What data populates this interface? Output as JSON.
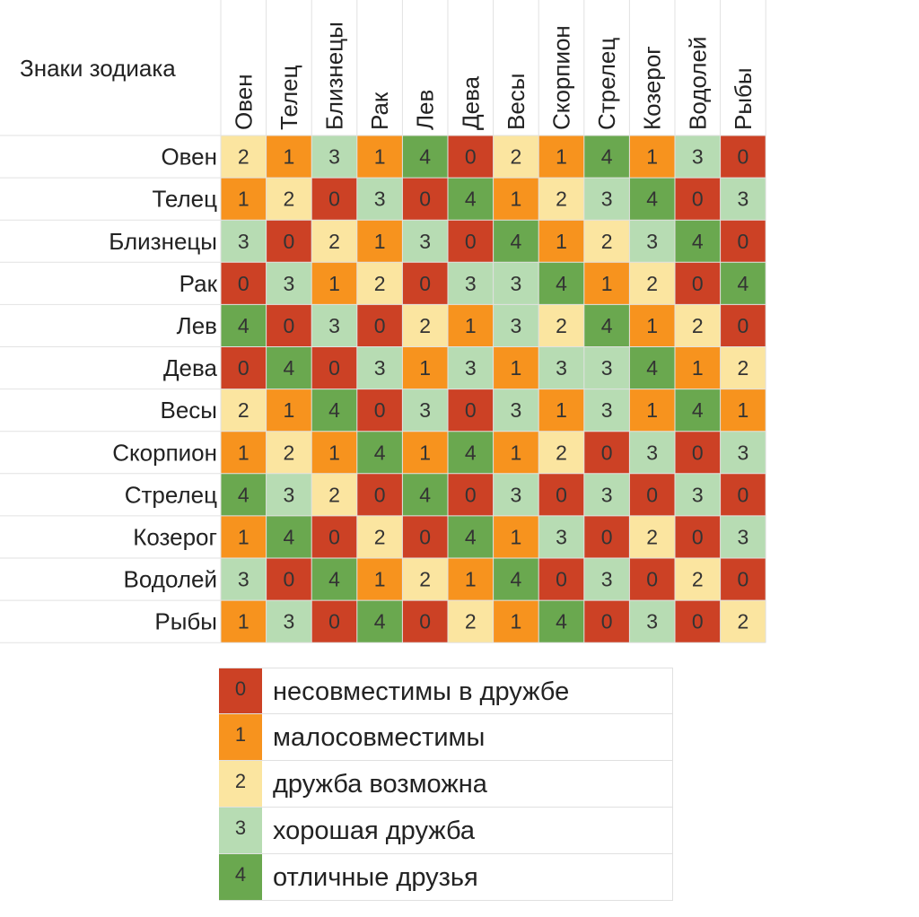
{
  "chart_data": {
    "type": "heatmap",
    "title": "Знаки зодиака",
    "columns": [
      "Овен",
      "Телец",
      "Близнецы",
      "Рак",
      "Лев",
      "Дева",
      "Весы",
      "Скорпион",
      "Стрелец",
      "Козерог",
      "Водолей",
      "Рыбы"
    ],
    "rows": [
      "Овен",
      "Телец",
      "Близнецы",
      "Рак",
      "Лев",
      "Дева",
      "Весы",
      "Скорпион",
      "Стрелец",
      "Козерог",
      "Водолей",
      "Рыбы"
    ],
    "values": [
      [
        2,
        1,
        3,
        1,
        4,
        0,
        2,
        1,
        4,
        1,
        3,
        0
      ],
      [
        1,
        2,
        0,
        3,
        0,
        4,
        1,
        2,
        3,
        4,
        0,
        3
      ],
      [
        3,
        0,
        2,
        1,
        3,
        0,
        4,
        1,
        2,
        3,
        4,
        0
      ],
      [
        0,
        3,
        1,
        2,
        0,
        3,
        3,
        4,
        1,
        2,
        0,
        4
      ],
      [
        4,
        0,
        3,
        0,
        2,
        1,
        3,
        2,
        4,
        1,
        2,
        0
      ],
      [
        0,
        4,
        0,
        3,
        1,
        3,
        1,
        3,
        3,
        4,
        1,
        2
      ],
      [
        2,
        1,
        4,
        0,
        3,
        0,
        3,
        1,
        3,
        1,
        4,
        1
      ],
      [
        1,
        2,
        1,
        4,
        1,
        4,
        1,
        2,
        0,
        3,
        0,
        3
      ],
      [
        4,
        3,
        2,
        0,
        4,
        0,
        3,
        0,
        3,
        0,
        3,
        0
      ],
      [
        1,
        4,
        0,
        2,
        0,
        4,
        1,
        3,
        0,
        2,
        0,
        3
      ],
      [
        3,
        0,
        4,
        1,
        2,
        1,
        4,
        0,
        3,
        0,
        2,
        0
      ],
      [
        1,
        3,
        0,
        4,
        0,
        2,
        1,
        4,
        0,
        3,
        0,
        2
      ]
    ],
    "colors": {
      "0": "#cc4125",
      "1": "#f7931e",
      "2": "#fbe5a0",
      "3": "#b7dcb3",
      "4": "#6aa84f"
    },
    "grid": true
  },
  "legend": {
    "items": [
      {
        "value": "0",
        "label": "несовместимы в дружбе",
        "color": "#cc4125"
      },
      {
        "value": "1",
        "label": "малосовместимы",
        "color": "#f7931e"
      },
      {
        "value": "2",
        "label": "дружба возможна",
        "color": "#fbe5a0"
      },
      {
        "value": "3",
        "label": "хорошая дружба",
        "color": "#b7dcb3"
      },
      {
        "value": "4",
        "label": "отличные друзья",
        "color": "#6aa84f"
      }
    ]
  }
}
